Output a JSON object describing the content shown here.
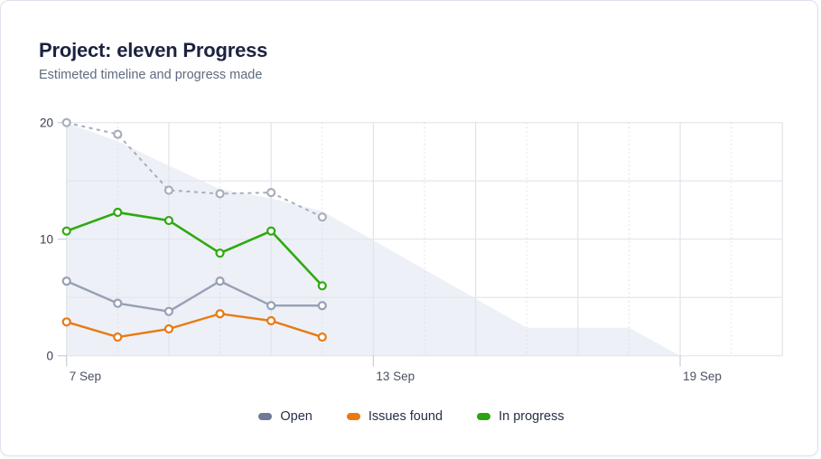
{
  "header": {
    "title": "Project: eleven Progress",
    "subtitle": "Estimeted timeline and progress made"
  },
  "chart_data": {
    "type": "line",
    "title": "Project: eleven Progress",
    "subtitle": "Estimeted timeline and progress made",
    "x_axis": {
      "unit": "day",
      "total_days": 14,
      "tick_labels": [
        {
          "label": "7 Sep",
          "day": 0
        },
        {
          "label": "13 Sep",
          "day": 6
        },
        {
          "label": "19 Sep",
          "day": 12
        }
      ],
      "solid_grid_days": [
        0,
        2,
        4,
        6,
        8,
        10,
        12,
        14
      ],
      "dotted_grid_days": [
        1,
        3,
        5,
        7,
        9,
        11,
        13
      ]
    },
    "y_axis": {
      "range": [
        0,
        20
      ],
      "gridline_values": [
        0,
        5,
        10,
        15,
        20
      ],
      "ticks": [
        {
          "label": "0",
          "value": 0
        },
        {
          "label": "10",
          "value": 10
        },
        {
          "label": "20",
          "value": 20
        }
      ]
    },
    "estimated_area": {
      "name": "estimated-remaining-area",
      "fill": "#edf0f7",
      "days": [
        0,
        1,
        2,
        3,
        4,
        5,
        9,
        11,
        12
      ],
      "values": [
        20,
        18.4,
        16.3,
        14.3,
        13.5,
        12.4,
        2.4,
        2.4,
        0
      ]
    },
    "series": [
      {
        "name": "Estimated",
        "style": "dashed",
        "color": "#a9aebb",
        "line_width": 2,
        "days": [
          0,
          1,
          2,
          3,
          4,
          5
        ],
        "values": [
          20,
          19,
          14.2,
          13.9,
          14.0,
          11.9
        ]
      },
      {
        "name": "Open",
        "style": "solid",
        "color": "#97a0b4",
        "line_width": 2.4,
        "days": [
          0,
          1,
          2,
          3,
          4,
          5
        ],
        "values": [
          6.4,
          4.5,
          3.8,
          6.4,
          4.3,
          4.3
        ]
      },
      {
        "name": "Issues found",
        "style": "solid",
        "color": "#e87a12",
        "line_width": 2.4,
        "days": [
          0,
          1,
          2,
          3,
          4,
          5
        ],
        "values": [
          2.9,
          1.6,
          2.3,
          3.6,
          3.0,
          1.6
        ]
      },
      {
        "name": "In progress",
        "style": "solid",
        "color": "#2fa911",
        "line_width": 2.6,
        "days": [
          0,
          1,
          2,
          3,
          4,
          5
        ],
        "values": [
          10.7,
          12.3,
          11.6,
          8.8,
          10.7,
          6.0
        ]
      }
    ],
    "legend": {
      "items": [
        {
          "label": "Open",
          "color": "#6f7a95"
        },
        {
          "label": "Issues found",
          "color": "#e87a12"
        },
        {
          "label": "In progress",
          "color": "#2ca40f"
        }
      ]
    },
    "colors": {
      "grid_solid": "#e2e4eb",
      "grid_dotted": "#d9dce4",
      "tick_mark": "#c9cdd7",
      "y_label_text": "#3a4152",
      "x_label_text": "#4a5162"
    }
  }
}
